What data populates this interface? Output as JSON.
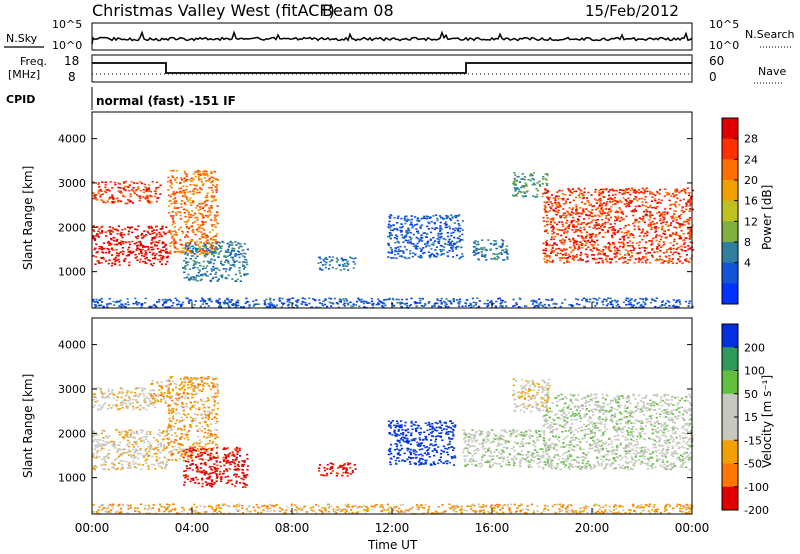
{
  "header": {
    "station": "Christmas Valley West (fitACF)",
    "beam": "Beam 08",
    "date": "15/Feb/2012"
  },
  "top_panels": {
    "nsky_label": "N.Sky",
    "nsearch_label": "N.Search",
    "nsky_ticks": [
      "10^5",
      "10^0"
    ],
    "nsky_right_ticks": [
      "10^5",
      "10^0"
    ],
    "freq_label_1": "Freq.",
    "freq_label_2": "[MHz]",
    "freq_ticks": [
      "18",
      "8"
    ],
    "nave_label": "Nave",
    "nave_ticks": [
      "60",
      "0"
    ],
    "cpid_label": "CPID",
    "cpid_text": "normal (fast) -151 IF"
  },
  "chart_data": [
    {
      "type": "heatmap",
      "title": "",
      "xlabel": "",
      "ylabel": "Slant Range [km]",
      "x_ticks": [
        "00:00",
        "04:00",
        "08:00",
        "12:00",
        "16:00",
        "20:00",
        "00:00"
      ],
      "y_ticks": [
        "1000",
        "2000",
        "3000",
        "4000"
      ],
      "xlim": [
        0,
        24
      ],
      "ylim": [
        180,
        4600
      ],
      "colorbar_label": "Power [dB]",
      "colorbar_ticks": [
        "28",
        "24",
        "20",
        "16",
        "12",
        "8",
        "4"
      ],
      "colors": [
        "#0033ff",
        "#1155d8",
        "#2f7fa0",
        "#4a9a6a",
        "#7fb040",
        "#c0c020",
        "#f0a000",
        "#ff7000",
        "#ff3000",
        "#e00000"
      ],
      "regions": [
        {
          "x": [
            0.0,
            3.0
          ],
          "y": [
            1150,
            2050
          ],
          "level": 9
        },
        {
          "x": [
            0.0,
            2.7
          ],
          "y": [
            2550,
            3050
          ],
          "level": 8
        },
        {
          "x": [
            3.0,
            5.0
          ],
          "y": [
            1400,
            3300
          ],
          "level": 7
        },
        {
          "x": [
            3.6,
            6.2
          ],
          "y": [
            800,
            1700
          ],
          "level": 2
        },
        {
          "x": [
            9.0,
            10.5
          ],
          "y": [
            1050,
            1350
          ],
          "level": 2
        },
        {
          "x": [
            11.8,
            14.8
          ],
          "y": [
            1300,
            2300
          ],
          "level": 1
        },
        {
          "x": [
            15.2,
            16.6
          ],
          "y": [
            1250,
            1750
          ],
          "level": 2
        },
        {
          "x": [
            16.8,
            18.2
          ],
          "y": [
            2700,
            3250
          ],
          "level": 3
        },
        {
          "x": [
            18.0,
            24.0
          ],
          "y": [
            1200,
            2900
          ],
          "level": 8
        },
        {
          "x": [
            0.0,
            24.0
          ],
          "y": [
            200,
            420
          ],
          "level": 1
        }
      ]
    },
    {
      "type": "heatmap",
      "title": "",
      "xlabel": "Time UT",
      "ylabel": "Slant Range [km]",
      "x_ticks": [
        "00:00",
        "04:00",
        "08:00",
        "12:00",
        "16:00",
        "20:00",
        "00:00"
      ],
      "y_ticks": [
        "1000",
        "2000",
        "3000",
        "4000"
      ],
      "xlim": [
        0,
        24
      ],
      "ylim": [
        180,
        4600
      ],
      "colorbar_label": "Velocity [m s⁻¹]",
      "colorbar_ticks": [
        "200",
        "100",
        "50",
        "15",
        "-15",
        "-50",
        "-100",
        "-200"
      ],
      "colors": [
        "#e00000",
        "#ff3300",
        "#ff7700",
        "#f0a000",
        "#c8c8c0",
        "#c8c8c0",
        "#60c040",
        "#2f9a5a",
        "#1550c8",
        "#0030e0"
      ],
      "regions": [
        {
          "x": [
            0.0,
            3.0
          ],
          "y": [
            1200,
            2100
          ],
          "level": 4
        },
        {
          "x": [
            0.0,
            2.5
          ],
          "y": [
            2550,
            3050
          ],
          "level": 4
        },
        {
          "x": [
            2.3,
            3.2
          ],
          "y": [
            2700,
            3200
          ],
          "level": 3
        },
        {
          "x": [
            3.0,
            5.0
          ],
          "y": [
            1400,
            3300
          ],
          "level": 3
        },
        {
          "x": [
            3.6,
            6.2
          ],
          "y": [
            800,
            1700
          ],
          "level": 0
        },
        {
          "x": [
            9.0,
            10.5
          ],
          "y": [
            1050,
            1350
          ],
          "level": 0
        },
        {
          "x": [
            11.8,
            14.5
          ],
          "y": [
            1300,
            2300
          ],
          "level": 9
        },
        {
          "x": [
            14.8,
            18.0
          ],
          "y": [
            1250,
            2100
          ],
          "level": 5
        },
        {
          "x": [
            16.8,
            18.3
          ],
          "y": [
            2500,
            3250
          ],
          "level": 4
        },
        {
          "x": [
            18.0,
            24.0
          ],
          "y": [
            1200,
            2900
          ],
          "level": 5
        },
        {
          "x": [
            0.0,
            24.0
          ],
          "y": [
            200,
            420
          ],
          "level": 3
        }
      ]
    }
  ]
}
